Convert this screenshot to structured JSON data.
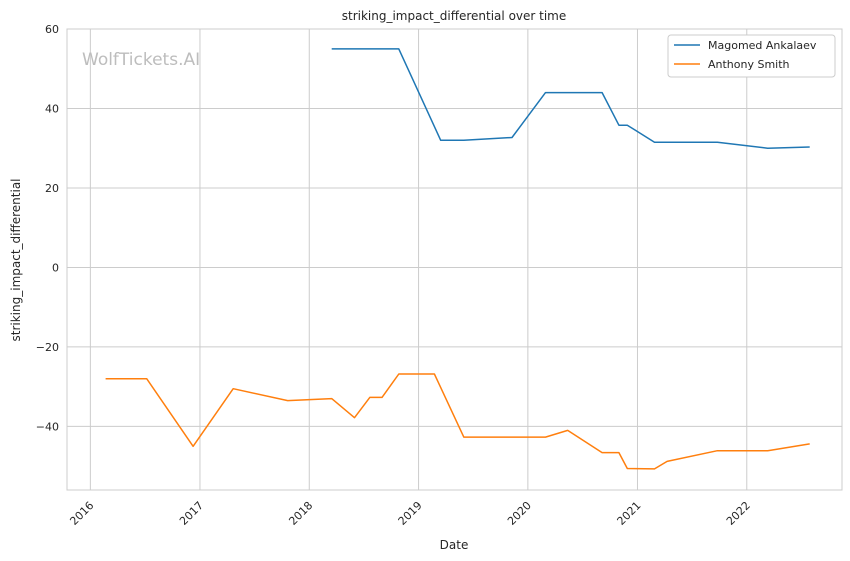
{
  "chart_data": {
    "type": "line",
    "title": "striking_impact_differential over time",
    "xlabel": "Date",
    "ylabel": "striking_impact_differential",
    "watermark": "WolfTickets.AI",
    "xlim": [
      "2015-10-15",
      "2022-11-15"
    ],
    "ylim": [
      -56,
      60
    ],
    "x_ticks": [
      "2016",
      "2017",
      "2018",
      "2019",
      "2020",
      "2021",
      "2022"
    ],
    "y_ticks": [
      60,
      40,
      20,
      0,
      -20,
      -40
    ],
    "y_tick_labels": [
      "60",
      "40",
      "20",
      "0",
      "−20",
      "−40"
    ],
    "grid": true,
    "legend_position": "top-right",
    "series": [
      {
        "name": "Magomed Ankalaev",
        "color": "#1f77b4",
        "points": [
          [
            "2018-03-17",
            55
          ],
          [
            "2018-10-27",
            55
          ],
          [
            "2019-03-16",
            32
          ],
          [
            "2019-06-01",
            32
          ],
          [
            "2019-11-09",
            32.7
          ],
          [
            "2020-02-29",
            44
          ],
          [
            "2020-09-05",
            44
          ],
          [
            "2020-10-31",
            35.8
          ],
          [
            "2020-11-28",
            35.8
          ],
          [
            "2021-02-27",
            31.5
          ],
          [
            "2021-09-25",
            31.5
          ],
          [
            "2022-03-12",
            30
          ],
          [
            "2022-07-30",
            30.3
          ]
        ]
      },
      {
        "name": "Anthony Smith",
        "color": "#ff7f0e",
        "points": [
          [
            "2016-02-21",
            -28
          ],
          [
            "2016-07-07",
            -28
          ],
          [
            "2016-12-09",
            -45
          ],
          [
            "2017-04-22",
            -30.5
          ],
          [
            "2017-10-21",
            -33.5
          ],
          [
            "2018-03-17",
            -33
          ],
          [
            "2018-06-01",
            -37.8
          ],
          [
            "2018-07-22",
            -32.7
          ],
          [
            "2018-09-01",
            -32.7
          ],
          [
            "2018-10-27",
            -26.8
          ],
          [
            "2019-02-23",
            -26.8
          ],
          [
            "2019-06-01",
            -42.7
          ],
          [
            "2020-02-29",
            -42.7
          ],
          [
            "2020-05-13",
            -41
          ],
          [
            "2020-09-05",
            -46.6
          ],
          [
            "2020-10-31",
            -46.6
          ],
          [
            "2020-11-28",
            -50.6
          ],
          [
            "2021-02-27",
            -50.7
          ],
          [
            "2021-04-10",
            -48.8
          ],
          [
            "2021-09-25",
            -46.1
          ],
          [
            "2022-03-12",
            -46.1
          ],
          [
            "2022-07-30",
            -44.4
          ]
        ]
      }
    ]
  }
}
